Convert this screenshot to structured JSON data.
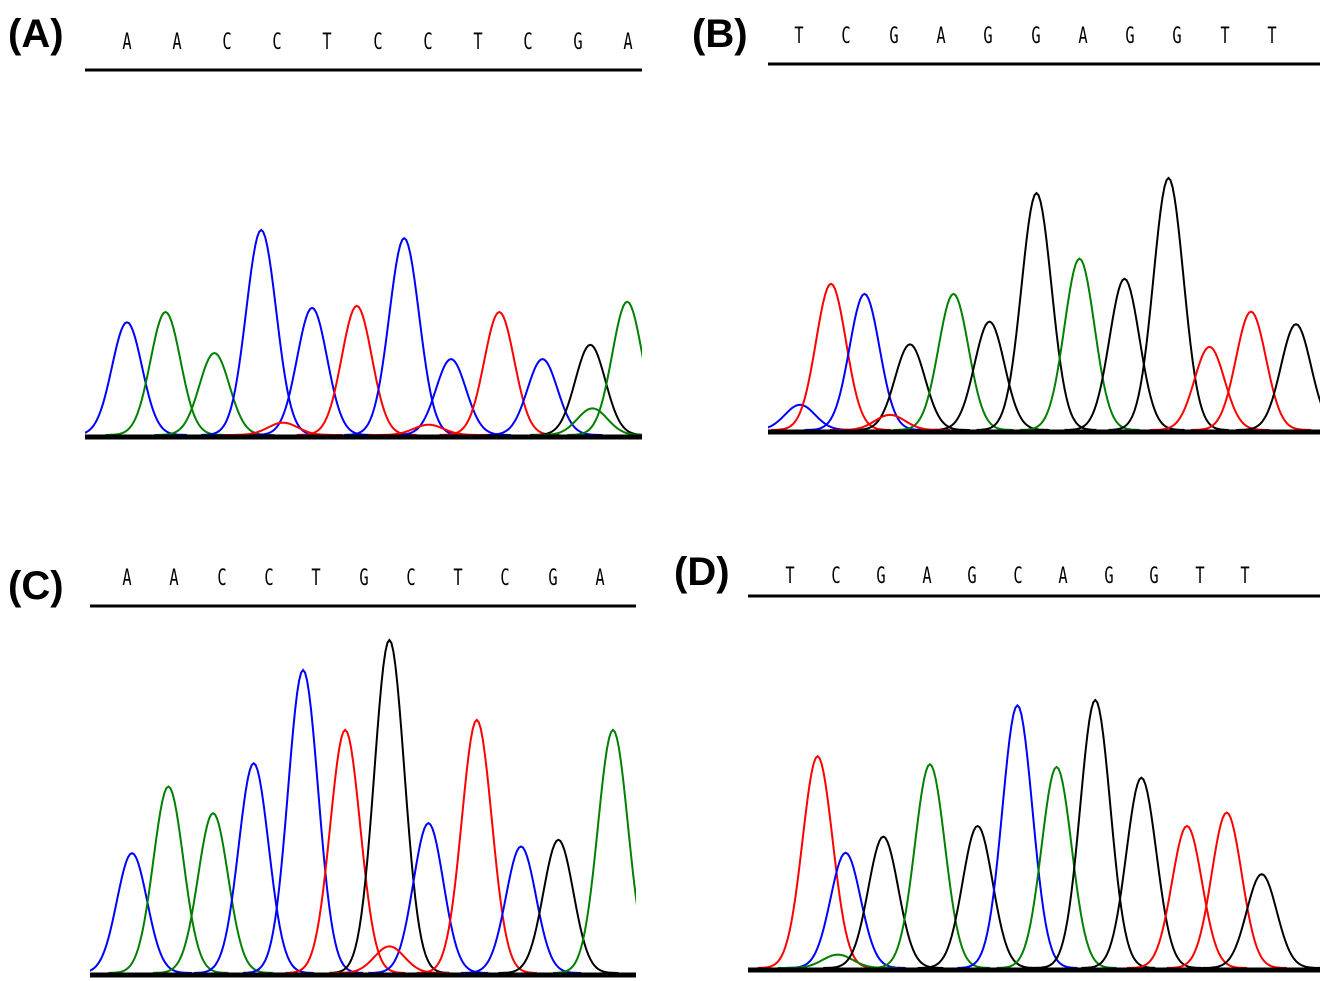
{
  "colors": {
    "A": "#008000",
    "C": "#0000ff",
    "G": "#000000",
    "T": "#ff0000",
    "axis": "#000000"
  },
  "panels": [
    {
      "label": "(A)",
      "bases": [
        "A",
        "A",
        "C",
        "C",
        "T",
        "C",
        "C",
        "T",
        "C",
        "G",
        "A"
      ],
      "peaks": [
        {
          "base": "C",
          "pos": 0.0,
          "h": 0.55
        },
        {
          "base": "A",
          "pos": 0.74,
          "h": 0.6
        },
        {
          "base": "A",
          "pos": 1.68,
          "h": 0.4
        },
        {
          "base": "C",
          "pos": 2.58,
          "h": 1.0
        },
        {
          "base": "C",
          "pos": 3.56,
          "h": 0.62
        },
        {
          "base": "T",
          "pos": 4.42,
          "h": 0.63
        },
        {
          "base": "C",
          "pos": 5.33,
          "h": 0.96
        },
        {
          "base": "C",
          "pos": 6.23,
          "h": 0.37
        },
        {
          "base": "T",
          "pos": 7.16,
          "h": 0.6
        },
        {
          "base": "C",
          "pos": 7.99,
          "h": 0.37
        },
        {
          "base": "G",
          "pos": 8.91,
          "h": 0.44
        },
        {
          "base": "A",
          "pos": 9.62,
          "h": 0.65
        },
        {
          "base": "A",
          "pos": 8.95,
          "h": 0.13
        },
        {
          "base": "T",
          "pos": 3.0,
          "h": 0.06
        },
        {
          "base": "T",
          "pos": 5.8,
          "h": 0.05
        }
      ]
    },
    {
      "label": "(B)",
      "bases": [
        "T",
        "C",
        "G",
        "A",
        "G",
        "G",
        "A",
        "G",
        "G",
        "T",
        "T"
      ],
      "peaks": [
        {
          "base": "C",
          "pos": -0.2,
          "h": 0.1
        },
        {
          "base": "T",
          "pos": 0.42,
          "h": 0.58
        },
        {
          "base": "C",
          "pos": 1.09,
          "h": 0.54
        },
        {
          "base": "G",
          "pos": 2.0,
          "h": 0.34
        },
        {
          "base": "A",
          "pos": 2.87,
          "h": 0.54
        },
        {
          "base": "G",
          "pos": 3.59,
          "h": 0.43
        },
        {
          "base": "G",
          "pos": 4.53,
          "h": 0.94
        },
        {
          "base": "A",
          "pos": 5.39,
          "h": 0.68
        },
        {
          "base": "G",
          "pos": 6.29,
          "h": 0.6
        },
        {
          "base": "G",
          "pos": 7.17,
          "h": 1.0
        },
        {
          "base": "T",
          "pos": 7.99,
          "h": 0.33
        },
        {
          "base": "T",
          "pos": 8.82,
          "h": 0.47
        },
        {
          "base": "G",
          "pos": 9.72,
          "h": 0.42
        },
        {
          "base": "T",
          "pos": 1.6,
          "h": 0.06
        }
      ]
    },
    {
      "label": "(C)",
      "bases": [
        "A",
        "A",
        "C",
        "C",
        "T",
        "G",
        "C",
        "T",
        "C",
        "G",
        "A"
      ],
      "peaks": [
        {
          "base": "C",
          "pos": 0.0,
          "h": 0.36
        },
        {
          "base": "A",
          "pos": 0.7,
          "h": 0.56
        },
        {
          "base": "A",
          "pos": 1.56,
          "h": 0.48
        },
        {
          "base": "C",
          "pos": 2.34,
          "h": 0.63
        },
        {
          "base": "C",
          "pos": 3.29,
          "h": 0.91
        },
        {
          "base": "T",
          "pos": 4.1,
          "h": 0.73
        },
        {
          "base": "G",
          "pos": 4.95,
          "h": 1.0
        },
        {
          "base": "C",
          "pos": 5.7,
          "h": 0.45
        },
        {
          "base": "T",
          "pos": 6.63,
          "h": 0.76
        },
        {
          "base": "C",
          "pos": 7.48,
          "h": 0.38
        },
        {
          "base": "G",
          "pos": 8.2,
          "h": 0.4
        },
        {
          "base": "A",
          "pos": 9.25,
          "h": 0.73
        },
        {
          "base": "T",
          "pos": 4.95,
          "h": 0.08
        }
      ]
    },
    {
      "label": "(D)",
      "bases": [
        "T",
        "C",
        "G",
        "A",
        "G",
        "C",
        "A",
        "G",
        "G",
        "T",
        "T"
      ],
      "peaks": [
        {
          "base": "T",
          "pos": 0.52,
          "h": 0.79
        },
        {
          "base": "C",
          "pos": 1.05,
          "h": 0.43
        },
        {
          "base": "A",
          "pos": 0.9,
          "h": 0.05
        },
        {
          "base": "G",
          "pos": 1.76,
          "h": 0.49
        },
        {
          "base": "A",
          "pos": 2.64,
          "h": 0.76
        },
        {
          "base": "G",
          "pos": 3.54,
          "h": 0.53
        },
        {
          "base": "C",
          "pos": 4.29,
          "h": 0.98
        },
        {
          "base": "A",
          "pos": 5.03,
          "h": 0.75
        },
        {
          "base": "G",
          "pos": 5.76,
          "h": 1.0
        },
        {
          "base": "G",
          "pos": 6.63,
          "h": 0.71
        },
        {
          "base": "T",
          "pos": 7.49,
          "h": 0.53
        },
        {
          "base": "T",
          "pos": 8.24,
          "h": 0.58
        },
        {
          "base": "G",
          "pos": 8.9,
          "h": 0.35
        }
      ]
    }
  ]
}
